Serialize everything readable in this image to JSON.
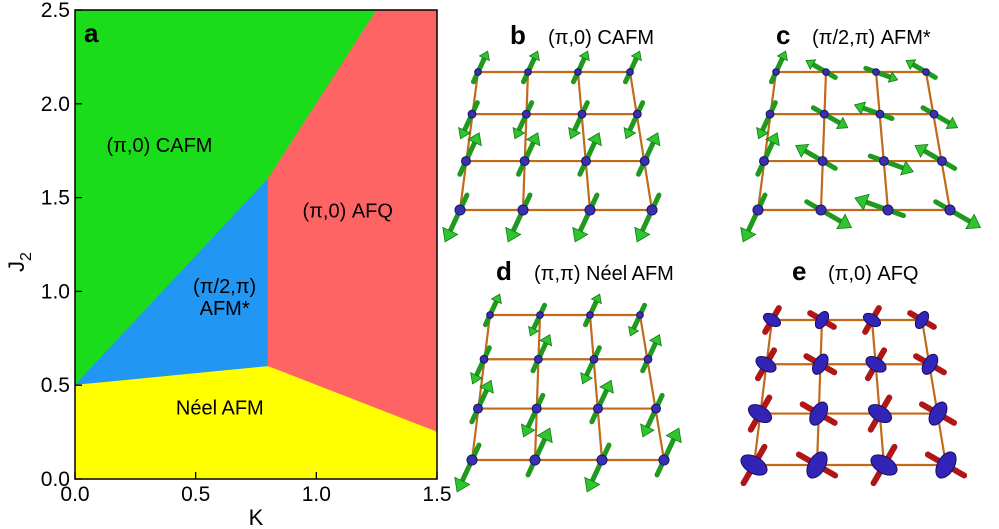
{
  "phase_diagram": {
    "panel_letter": "a",
    "xlabel": "K",
    "ylabel_main": "J",
    "ylabel_sub": "2",
    "xlim": [
      0.0,
      1.5
    ],
    "ylim": [
      0.0,
      2.5
    ],
    "x_ticks": [
      "0.0",
      "0.5",
      "1.0",
      "1.5"
    ],
    "x_tick_values": [
      0.0,
      0.5,
      1.0,
      1.5
    ],
    "y_ticks": [
      "0.0",
      "0.5",
      "1.0",
      "1.5",
      "2.0",
      "2.5"
    ],
    "y_tick_values": [
      0.0,
      0.5,
      1.0,
      1.5,
      2.0,
      2.5
    ],
    "regions": [
      {
        "label_lines": [
          "(π,0) CAFM"
        ],
        "color": "#1adc1a",
        "label_at": [
          0.35,
          1.78
        ],
        "polygon": [
          [
            0.0,
            2.5
          ],
          [
            1.25,
            2.5
          ],
          [
            0.8,
            1.6
          ],
          [
            0.0,
            0.5
          ]
        ]
      },
      {
        "label_lines": [
          "(π/2,π)",
          "AFM*"
        ],
        "color": "#2196f3",
        "label_at": [
          0.62,
          0.97
        ],
        "polygon": [
          [
            0.0,
            0.5
          ],
          [
            0.8,
            1.6
          ],
          [
            0.8,
            0.6
          ]
        ]
      },
      {
        "label_lines": [
          "(π,0) AFQ"
        ],
        "color": "#ff6464",
        "label_at": [
          1.13,
          1.43
        ],
        "polygon": [
          [
            0.8,
            1.6
          ],
          [
            1.25,
            2.5
          ],
          [
            1.5,
            2.5
          ],
          [
            1.5,
            0.25
          ],
          [
            0.8,
            0.6
          ]
        ]
      },
      {
        "label_lines": [
          "Néel AFM"
        ],
        "color": "#ffff00",
        "label_at": [
          0.6,
          0.38
        ],
        "polygon": [
          [
            0.0,
            0.5
          ],
          [
            0.8,
            0.6
          ],
          [
            1.5,
            0.25
          ],
          [
            1.5,
            0.0
          ],
          [
            0.0,
            0.0
          ]
        ]
      }
    ]
  },
  "panels": [
    {
      "id": "b",
      "letter": "b",
      "title": "(π,0) CAFM",
      "kind": "spin",
      "angles": [
        [
          65,
          65,
          65,
          65
        ],
        [
          -115,
          -115,
          -115,
          -115
        ],
        [
          65,
          65,
          65,
          65
        ],
        [
          -115,
          -115,
          -115,
          -115
        ]
      ]
    },
    {
      "id": "c",
      "letter": "c",
      "title": "(π/2,π) AFM*",
      "kind": "spin",
      "angles": [
        [
          65,
          150,
          -20,
          150
        ],
        [
          -115,
          -30,
          160,
          -30
        ],
        [
          65,
          150,
          -20,
          150
        ],
        [
          -115,
          -30,
          160,
          -30
        ]
      ]
    },
    {
      "id": "d",
      "letter": "d",
      "title": "(π,π) Néel AFM",
      "kind": "spin",
      "angles": [
        [
          65,
          -115,
          65,
          -115
        ],
        [
          -115,
          65,
          -115,
          65
        ],
        [
          65,
          -115,
          65,
          -115
        ],
        [
          -115,
          65,
          -115,
          65
        ]
      ]
    },
    {
      "id": "e",
      "letter": "e",
      "title": "(π,0) AFQ",
      "kind": "quad",
      "angles": [
        [
          60,
          -30,
          60,
          -30
        ],
        [
          60,
          -30,
          60,
          -30
        ],
        [
          60,
          -30,
          60,
          -30
        ],
        [
          60,
          -30,
          60,
          -30
        ]
      ]
    }
  ]
}
